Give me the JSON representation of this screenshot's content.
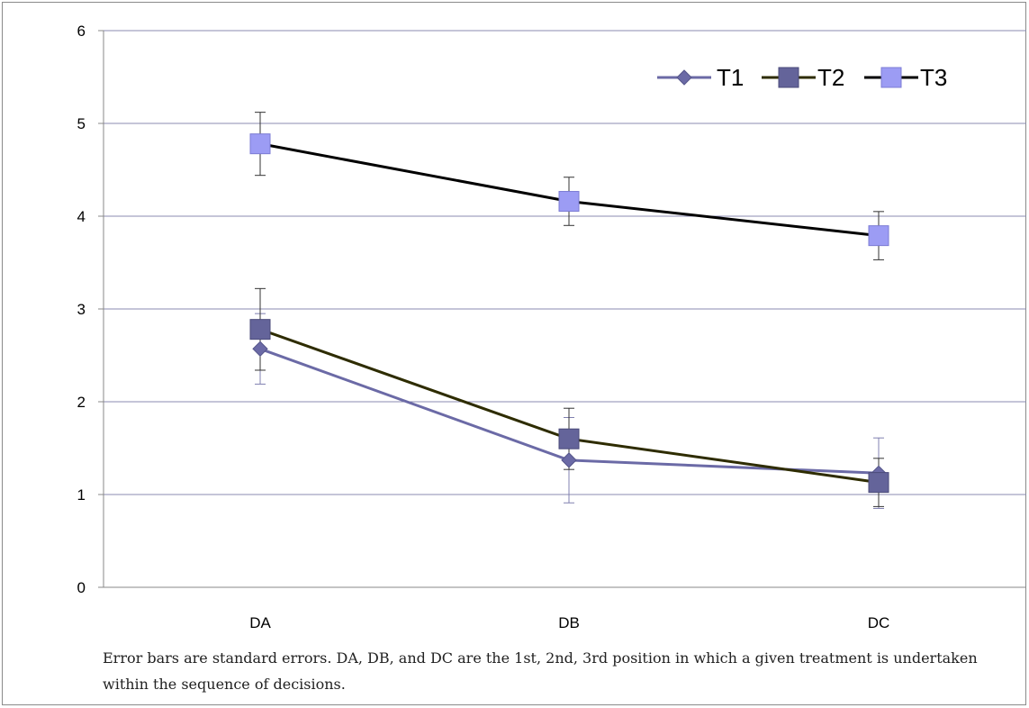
{
  "chart_data": {
    "type": "line",
    "categories": [
      "DA",
      "DB",
      "DC"
    ],
    "ylim": [
      0,
      6
    ],
    "yticks": [
      0,
      1,
      2,
      3,
      4,
      5,
      6
    ],
    "grid": true,
    "legend_position": "top-right",
    "series": [
      {
        "name": "T1",
        "values": [
          2.57,
          1.37,
          1.23
        ],
        "errors": [
          0.38,
          0.46,
          0.38
        ],
        "color": "#6b6aa6",
        "marker": "diamond"
      },
      {
        "name": "T2",
        "values": [
          2.78,
          1.6,
          1.13
        ],
        "errors": [
          0.44,
          0.33,
          0.26
        ],
        "color": "#2e2c00",
        "marker": "square"
      },
      {
        "name": "T3",
        "values": [
          4.78,
          4.16,
          3.79
        ],
        "errors": [
          0.34,
          0.26,
          0.26
        ],
        "color": "#000000",
        "marker": "square-light"
      }
    ]
  },
  "caption": "Error bars are standard errors. DA, DB, and DC are the 1st, 2nd, 3rd position in which a given treatment is undertaken within the sequence of decisions."
}
